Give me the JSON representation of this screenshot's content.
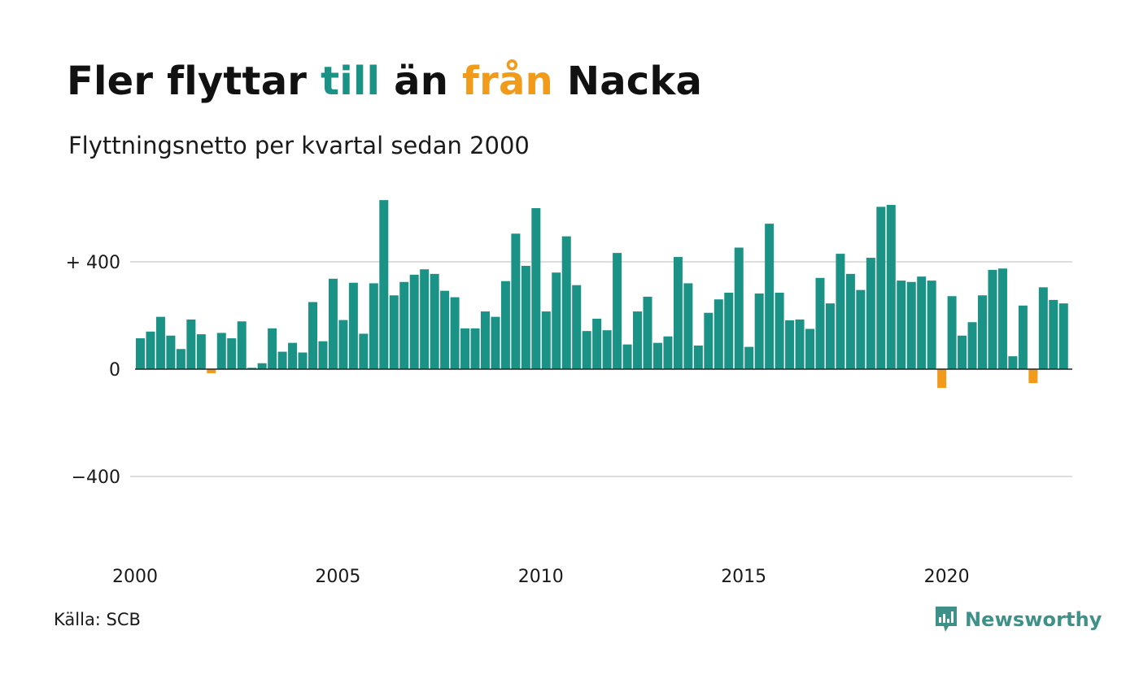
{
  "title": {
    "part1": "Fler flyttar ",
    "part2": "till",
    "part3": " än ",
    "part4": "från",
    "part5": " Nacka"
  },
  "subtitle": "Flyttningsnetto per kvartal sedan 2000",
  "source": "Källa: SCB",
  "brand": {
    "name": "Newsworthy",
    "logo_icon": "newsworthy-chart-bubble-icon"
  },
  "colors": {
    "positive": "#1a9285",
    "negative": "#f29a1a",
    "brand": "#3e9189",
    "grid": "#dddddd"
  },
  "chart_data": {
    "type": "bar",
    "title": "Fler flyttar till än från Nacka",
    "subtitle": "Flyttningsnetto per kvartal sedan 2000",
    "x_start": "2000 Q1",
    "x_tick_labels": [
      "2000",
      "2005",
      "2010",
      "2015",
      "2020"
    ],
    "y_tick_values": [
      400,
      0,
      -400
    ],
    "y_tick_labels": [
      "+ 400",
      "0",
      "−400"
    ],
    "ylim": [
      -650,
      650
    ],
    "grid": true,
    "values": [
      115,
      140,
      195,
      125,
      75,
      185,
      130,
      -15,
      135,
      115,
      178,
      5,
      22,
      152,
      65,
      98,
      62,
      250,
      104,
      337,
      183,
      322,
      132,
      320,
      630,
      275,
      325,
      352,
      372,
      355,
      292,
      268,
      152,
      152,
      215,
      195,
      328,
      505,
      385,
      600,
      215,
      360,
      495,
      313,
      142,
      188,
      145,
      433,
      92,
      215,
      270,
      98,
      122,
      418,
      320,
      88,
      210,
      260,
      285,
      453,
      83,
      282,
      542,
      285,
      182,
      185,
      150,
      340,
      245,
      430,
      355,
      295,
      415,
      605,
      612,
      330,
      325,
      345,
      330,
      -70,
      272,
      125,
      175,
      275,
      370,
      375,
      48,
      237,
      -52,
      305,
      258,
      245
    ]
  }
}
